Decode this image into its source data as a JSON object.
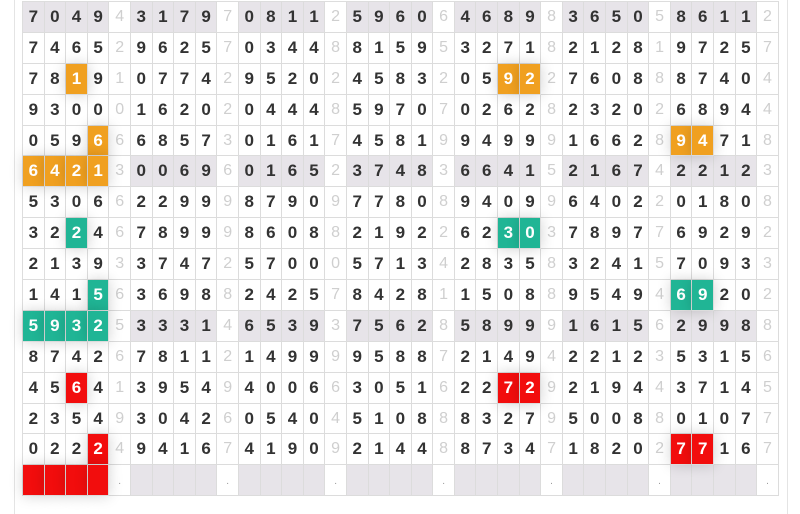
{
  "grid": {
    "rows": [
      "7049431797081125960646898365058611 2",
      "",
      "",
      "",
      "",
      "",
      "",
      "",
      "",
      "",
      "",
      "",
      "",
      "",
      ""
    ],
    "row_strings": [
      "70494317970811259606468983650586112",
      "74652962570344881595327182128197257",
      "78191077429520245832059227608887404",
      "93000162020444859707026282320268944",
      "05966685730161745819949991662894718",
      "64213006960165237483664152167422123",
      "53066229998790977808940996402201808",
      "32246789998608821922623037897769292",
      "21393374725700057134283583241570933",
      "14156369882425784281150889549469202",
      "59325333146539375628589991615629988",
      "87426781121499995887214942212353156",
      "45641395494006630516227292194437145",
      "23549304260540451088832795008801077",
      "02224941674190921448873471820277167"
    ],
    "shaded_rows": [
      0,
      5,
      10
    ],
    "bottom_row_dot": ".",
    "colors": {
      "orange": "#f0a020",
      "teal": "#20b595",
      "red": "#f20d0d",
      "shade": "#e7e4e9"
    },
    "highlights": [
      {
        "row": 2,
        "cols": [
          2
        ],
        "color": "orange"
      },
      {
        "row": 2,
        "cols": [
          22,
          23
        ],
        "color": "orange"
      },
      {
        "row": 4,
        "cols": [
          3
        ],
        "color": "orange"
      },
      {
        "row": 4,
        "cols": [
          30,
          31
        ],
        "color": "orange"
      },
      {
        "row": 5,
        "cols": [
          0,
          1,
          2,
          3
        ],
        "color": "orange"
      },
      {
        "row": 7,
        "cols": [
          2
        ],
        "color": "teal"
      },
      {
        "row": 7,
        "cols": [
          22,
          23
        ],
        "color": "teal"
      },
      {
        "row": 9,
        "cols": [
          3
        ],
        "color": "teal"
      },
      {
        "row": 9,
        "cols": [
          30,
          31
        ],
        "color": "teal"
      },
      {
        "row": 10,
        "cols": [
          0,
          1,
          2,
          3
        ],
        "color": "teal"
      },
      {
        "row": 12,
        "cols": [
          2
        ],
        "color": "red"
      },
      {
        "row": 12,
        "cols": [
          22,
          23
        ],
        "color": "red"
      },
      {
        "row": 14,
        "cols": [
          3
        ],
        "color": "red"
      },
      {
        "row": 14,
        "cols": [
          30,
          31
        ],
        "color": "red"
      },
      {
        "row": 15,
        "cols": [
          0,
          1,
          2,
          3
        ],
        "color": "red"
      }
    ]
  }
}
